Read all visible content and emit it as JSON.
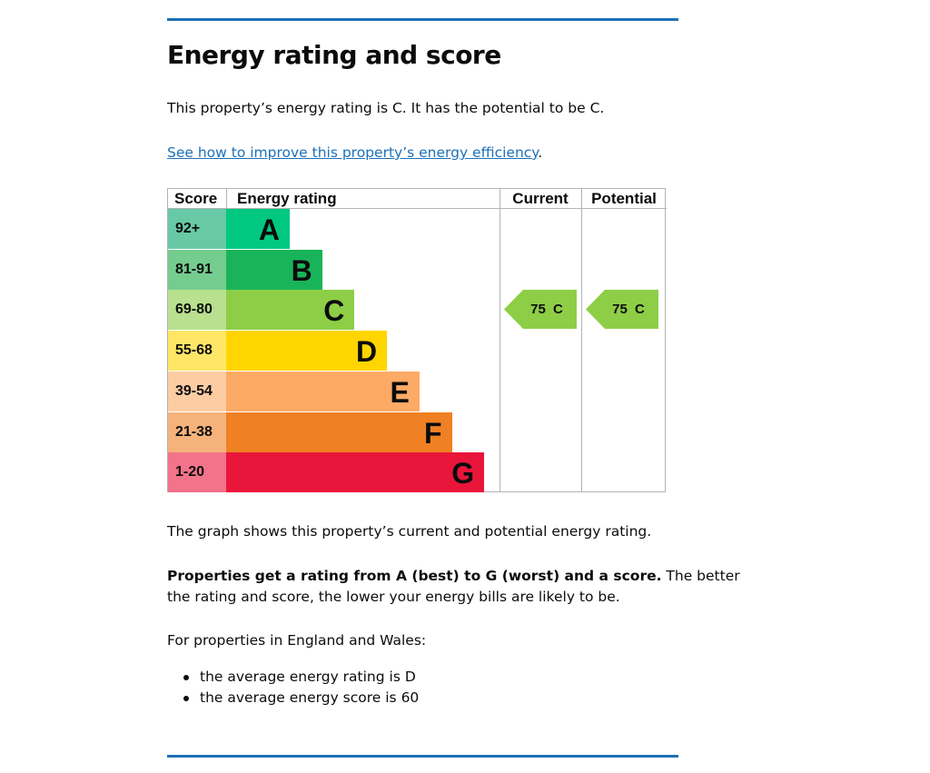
{
  "heading": "Energy rating and score",
  "summary": "This property’s energy rating is C. It has the potential to be C.",
  "improve_link": "See how to improve this property’s energy efficiency",
  "improve_link_suffix": ".",
  "graph": {
    "headers": {
      "score": "Score",
      "energy_rating": "Energy rating",
      "current": "Current",
      "potential": "Potential"
    },
    "bands": [
      {
        "score": "92+",
        "letter": "A",
        "band_color": "#00c781",
        "score_color": "#68c9a6"
      },
      {
        "score": "81-91",
        "letter": "B",
        "band_color": "#19b459",
        "score_color": "#75cc8f"
      },
      {
        "score": "69-80",
        "letter": "C",
        "band_color": "#8dce46",
        "score_color": "#b9e08e"
      },
      {
        "score": "55-68",
        "letter": "D",
        "band_color": "#ffd500",
        "score_color": "#ffe666"
      },
      {
        "score": "39-54",
        "letter": "E",
        "band_color": "#fcaa65",
        "score_color": "#fdcca3"
      },
      {
        "score": "21-38",
        "letter": "F",
        "band_color": "#ef8023",
        "score_color": "#f5b37b"
      },
      {
        "score": "1-20",
        "letter": "G",
        "band_color": "#e9153b",
        "score_color": "#f2738a"
      }
    ],
    "current": {
      "score": "75",
      "letter": "C",
      "label": "75 C",
      "color": "#8dce46"
    },
    "potential": {
      "score": "75",
      "letter": "C",
      "label": "75 C",
      "color": "#8dce46"
    }
  },
  "graph_caption": "The graph shows this property’s current and potential energy rating.",
  "rating_explainer_bold": "Properties get a rating from A (best) to G (worst) and a score.",
  "rating_explainer_rest_line1": " The better",
  "rating_explainer_line2": "the rating and score, the lower your energy bills are likely to be.",
  "region_intro": "For properties in England and Wales:",
  "averages": [
    "the average energy rating is D",
    "the average energy score is 60"
  ]
}
